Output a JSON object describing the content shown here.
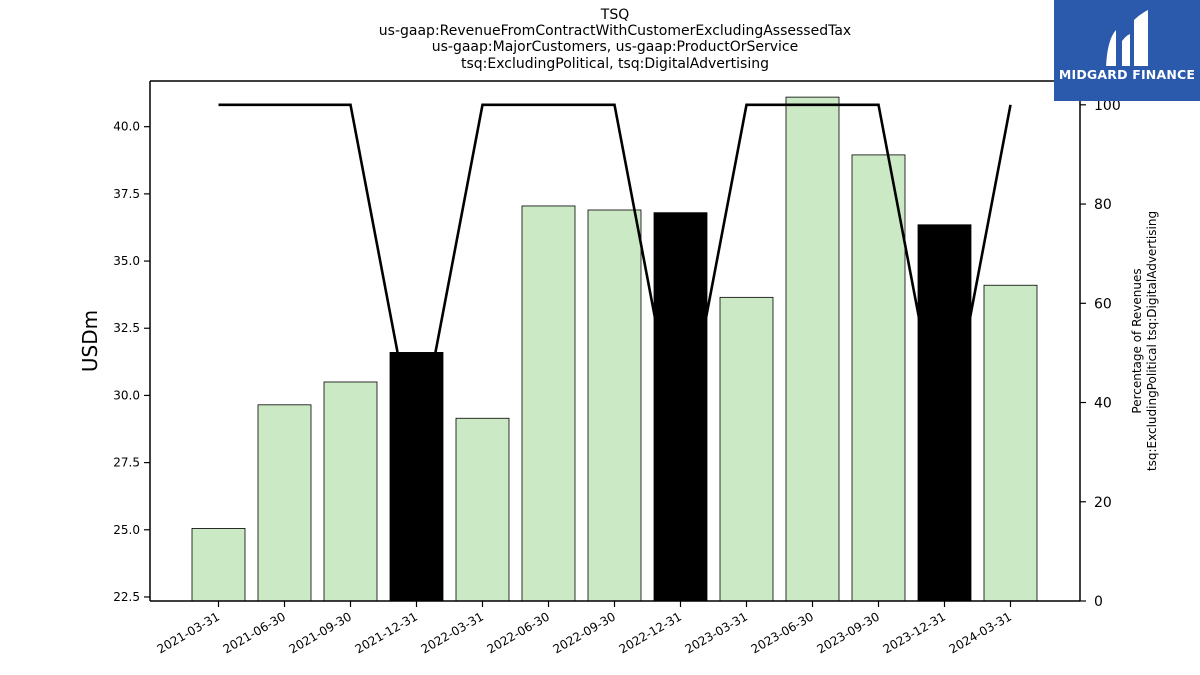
{
  "chart_data": {
    "type": "bar",
    "title_lines": [
      "TSQ",
      "us-gaap:RevenueFromContractWithCustomerExcludingAssessedTax",
      "us-gaap:MajorCustomers, us-gaap:ProductOrService",
      "tsq:ExcludingPolitical, tsq:DigitalAdvertising"
    ],
    "categories": [
      "2021-03-31",
      "2021-06-30",
      "2021-09-30",
      "2021-12-31",
      "2022-03-31",
      "2022-06-30",
      "2022-09-30",
      "2022-12-31",
      "2023-03-31",
      "2023-06-30",
      "2023-09-30",
      "2023-12-31",
      "2024-03-31"
    ],
    "values": [
      25.05,
      29.65,
      30.5,
      31.6,
      29.15,
      37.05,
      36.9,
      36.8,
      33.65,
      41.1,
      38.95,
      36.35,
      34.1
    ],
    "bar_colors": [
      "#cce9c5",
      "#cce9c5",
      "#cce9c5",
      "#000000",
      "#cce9c5",
      "#cce9c5",
      "#cce9c5",
      "#000000",
      "#cce9c5",
      "#cce9c5",
      "#cce9c5",
      "#000000",
      "#cce9c5"
    ],
    "ylabel": "USDm",
    "ylim": [
      22.35,
      41.7
    ],
    "yticks": [
      "22.5",
      "25.0",
      "27.5",
      "30.0",
      "32.5",
      "35.0",
      "37.5",
      "40.0"
    ],
    "secondary_axis": {
      "type": "line",
      "ylabel_lines": [
        "Percentage of Revenues",
        "tsq:ExcludingPolitical tsq:DigitalAdvertising"
      ],
      "values": [
        100,
        100,
        100,
        30,
        100,
        100,
        100,
        30,
        100,
        100,
        100,
        30,
        100
      ],
      "ylim": [
        0,
        104.8
      ],
      "yticks": [
        "0",
        "20",
        "40",
        "60",
        "80",
        "100"
      ],
      "color": "#000000"
    },
    "grid": false
  },
  "logo": {
    "text": "MIDGARD FINANCE",
    "background": "#2b5aac"
  }
}
